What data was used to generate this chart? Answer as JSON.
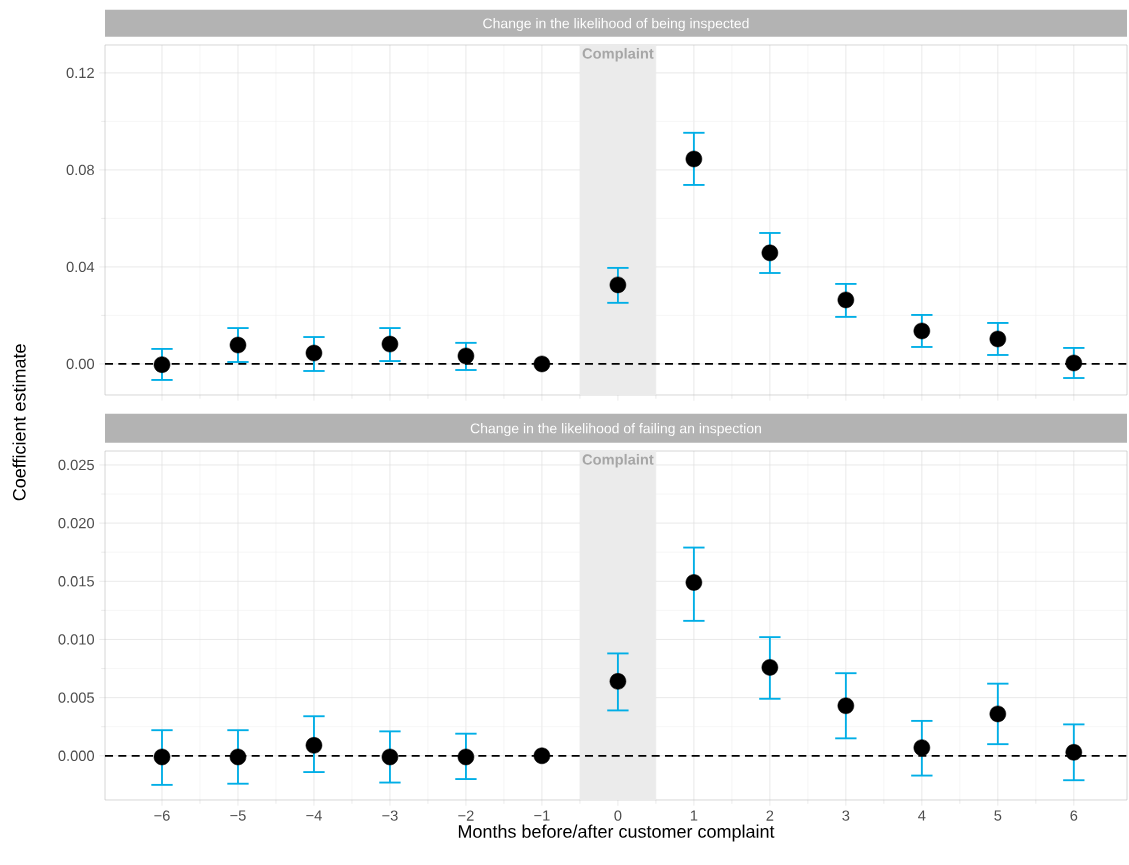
{
  "chart_data": [
    {
      "type": "scatter",
      "title": "Change in the likelihood of being inspected",
      "x": [
        -6,
        -5,
        -4,
        -3,
        -2,
        -1,
        0,
        1,
        2,
        3,
        4,
        5,
        6
      ],
      "series": [
        {
          "color": "#000000",
          "values": [
            -0.0003,
            0.0078,
            0.0045,
            0.0082,
            0.0033,
            0.0,
            0.0326,
            0.0845,
            0.0458,
            0.0264,
            0.0136,
            0.0103,
            0.0004
          ],
          "errors": [
            [
              -0.0066,
              0.0062
            ],
            [
              0.0008,
              0.0148
            ],
            [
              -0.0029,
              0.0111
            ],
            [
              0.0012,
              0.0148
            ],
            [
              -0.0025,
              0.0087
            ],
            null,
            [
              0.0252,
              0.0396
            ],
            [
              0.0738,
              0.0953
            ],
            [
              0.0375,
              0.054
            ],
            [
              0.0194,
              0.033
            ],
            [
              0.007,
              0.0202
            ],
            [
              0.0037,
              0.0169
            ],
            [
              -0.0058,
              0.0066
            ]
          ]
        }
      ],
      "marker": "circle",
      "grid": true,
      "tick_labels": "y",
      "xlim": [
        -6.75,
        6.7
      ],
      "ylim": [
        -0.0128,
        0.1315
      ],
      "xticks": [
        {
          "value": -6,
          "label": null
        },
        {
          "value": -5,
          "label": null
        },
        {
          "value": -4,
          "label": null
        },
        {
          "value": -3,
          "label": null
        },
        {
          "value": -2,
          "label": null
        },
        {
          "value": -1,
          "label": null
        },
        {
          "value": 0,
          "label": null
        },
        {
          "value": 1,
          "label": null
        },
        {
          "value": 2,
          "label": null
        },
        {
          "value": 3,
          "label": null
        },
        {
          "value": 4,
          "label": null
        },
        {
          "value": 5,
          "label": null
        },
        {
          "value": 6,
          "label": null
        }
      ],
      "yticks": [
        {
          "value": 0,
          "label": "0.00"
        },
        {
          "value": 0.04,
          "label": "0.04"
        },
        {
          "value": 0.08,
          "label": "0.08"
        },
        {
          "value": 0.12,
          "label": "0.12"
        }
      ],
      "bands": [
        {
          "axis": "x",
          "from": -0.5,
          "to": 0.5,
          "label": "Complaint",
          "color": "#ebebeb"
        }
      ],
      "ref_lines": [
        {
          "axis": "y",
          "value": 0,
          "color": "#000000",
          "line_style": "dashed"
        }
      ]
    },
    {
      "type": "scatter",
      "title": "Change in the likelihood of failing an inspection",
      "xlabel": "Months before/after customer complaint",
      "ylabel": "Coefficient estimate",
      "x": [
        -6,
        -5,
        -4,
        -3,
        -2,
        -1,
        0,
        1,
        2,
        3,
        4,
        5,
        6
      ],
      "series": [
        {
          "color": "#000000",
          "values": [
            -0.0001,
            -0.0001,
            0.0009,
            -0.0001,
            -0.0001,
            0.0,
            0.0064,
            0.0149,
            0.0076,
            0.0043,
            0.0007,
            0.0036,
            0.0003
          ],
          "errors": [
            [
              -0.0025,
              0.0022
            ],
            [
              -0.0024,
              0.0022
            ],
            [
              -0.0014,
              0.0034
            ],
            [
              -0.0023,
              0.0021
            ],
            [
              -0.002,
              0.0019
            ],
            null,
            [
              0.0039,
              0.0088
            ],
            [
              0.0116,
              0.0179
            ],
            [
              0.0049,
              0.0102
            ],
            [
              0.0015,
              0.0071
            ],
            [
              -0.0017,
              0.003
            ],
            [
              0.001,
              0.0062
            ],
            [
              -0.0021,
              0.0027
            ]
          ]
        }
      ],
      "marker": "circle",
      "grid": true,
      "xlim": [
        -6.75,
        6.7
      ],
      "ylim": [
        -0.0038,
        0.0262
      ],
      "xticks": [
        {
          "value": -6,
          "label": "−6"
        },
        {
          "value": -5,
          "label": "−5"
        },
        {
          "value": -4,
          "label": "−4"
        },
        {
          "value": -3,
          "label": "−3"
        },
        {
          "value": -2,
          "label": "−2"
        },
        {
          "value": -1,
          "label": "−1"
        },
        {
          "value": 0,
          "label": "0"
        },
        {
          "value": 1,
          "label": "1"
        },
        {
          "value": 2,
          "label": "2"
        },
        {
          "value": 3,
          "label": "3"
        },
        {
          "value": 4,
          "label": "4"
        },
        {
          "value": 5,
          "label": "5"
        },
        {
          "value": 6,
          "label": "6"
        }
      ],
      "yticks": [
        {
          "value": 0,
          "label": "0.000"
        },
        {
          "value": 0.005,
          "label": "0.005"
        },
        {
          "value": 0.01,
          "label": "0.010"
        },
        {
          "value": 0.015,
          "label": "0.015"
        },
        {
          "value": 0.02,
          "label": "0.020"
        },
        {
          "value": 0.025,
          "label": "0.025"
        }
      ],
      "bands": [
        {
          "axis": "x",
          "from": -0.5,
          "to": 0.5,
          "label": "Complaint",
          "color": "#ebebeb"
        }
      ],
      "ref_lines": [
        {
          "axis": "y",
          "value": 0,
          "color": "#000000",
          "line_style": "dashed"
        }
      ]
    }
  ]
}
